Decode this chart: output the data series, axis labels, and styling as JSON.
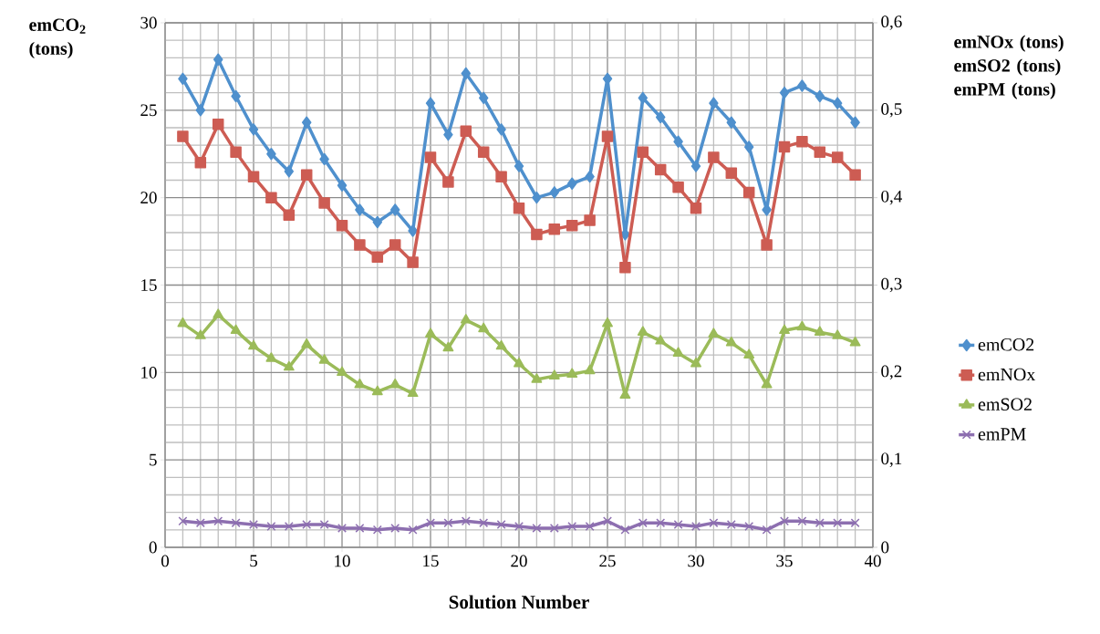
{
  "chart_data": {
    "type": "line",
    "xlabel": "Solution Number",
    "ylabel": "emCO$_{2}$ (tons)",
    "y2label": "emNOx (tons) emSO2 (tons) emPM (tons)",
    "x": [
      1,
      2,
      3,
      4,
      5,
      6,
      7,
      8,
      9,
      10,
      11,
      12,
      13,
      14,
      15,
      16,
      17,
      18,
      19,
      20,
      21,
      22,
      23,
      24,
      25,
      26,
      27,
      28,
      29,
      30,
      31,
      32,
      33,
      34,
      35,
      36,
      37,
      38,
      39
    ],
    "xlim": [
      0,
      40
    ],
    "xticks": [
      0,
      5,
      10,
      15,
      20,
      25,
      30,
      35,
      40
    ],
    "ylim": [
      0,
      30
    ],
    "yticks": [
      0,
      5,
      10,
      15,
      20,
      25,
      30
    ],
    "y2lim": [
      0,
      0.6
    ],
    "y2ticks": [
      0,
      {
        "value": 0.1,
        "label": "0,1"
      },
      {
        "value": 0.2,
        "label": "0,2"
      },
      {
        "value": 0.3,
        "label": "0,3"
      },
      {
        "value": 0.4,
        "label": "0,4"
      },
      {
        "value": 0.5,
        "label": "0,5"
      },
      {
        "value": 0.6,
        "label": "0,6"
      }
    ],
    "grid": true,
    "legend": "right",
    "series": [
      {
        "name": "emCO2",
        "color": "#4f90cd",
        "marker": "diamond",
        "values": [
          26.8,
          25.0,
          27.9,
          25.8,
          23.9,
          22.5,
          21.5,
          24.3,
          22.2,
          20.7,
          19.3,
          18.6,
          19.3,
          18.1,
          25.4,
          23.6,
          27.1,
          25.7,
          23.9,
          21.8,
          20.0,
          20.3,
          20.8,
          21.2,
          26.8,
          17.9,
          25.7,
          24.6,
          23.2,
          21.8,
          25.4,
          24.3,
          22.9,
          19.3,
          26.0,
          26.4,
          25.8,
          25.4,
          24.3
        ]
      },
      {
        "name": "emNOx",
        "color": "#cd5c53",
        "marker": "square",
        "axis": "y2",
        "values": [
          0.47,
          0.44,
          0.484,
          0.452,
          0.424,
          0.4,
          0.38,
          0.426,
          0.394,
          0.368,
          0.346,
          0.332,
          0.346,
          0.326,
          0.446,
          0.418,
          0.476,
          0.452,
          0.424,
          0.388,
          0.358,
          0.364,
          0.368,
          0.374,
          0.47,
          0.32,
          0.452,
          0.432,
          0.412,
          0.388,
          0.446,
          0.428,
          0.406,
          0.346,
          0.458,
          0.464,
          0.452,
          0.446,
          0.426
        ]
      },
      {
        "name": "emSO2",
        "color": "#9bbb59",
        "marker": "triangle",
        "axis": "y2",
        "values": [
          0.256,
          0.242,
          0.266,
          0.248,
          0.23,
          0.216,
          0.206,
          0.232,
          0.214,
          0.2,
          0.186,
          0.178,
          0.186,
          0.176,
          0.244,
          0.228,
          0.26,
          0.25,
          0.23,
          0.21,
          0.192,
          0.196,
          0.198,
          0.202,
          0.256,
          0.174,
          0.246,
          0.236,
          0.222,
          0.21,
          0.244,
          0.234,
          0.22,
          0.186,
          0.248,
          0.252,
          0.246,
          0.242,
          0.234
        ]
      },
      {
        "name": "emPM",
        "color": "#8d6fb0",
        "marker": "cross",
        "axis": "y2",
        "values": [
          0.03,
          0.028,
          0.03,
          0.028,
          0.026,
          0.024,
          0.024,
          0.026,
          0.026,
          0.022,
          0.022,
          0.02,
          0.022,
          0.02,
          0.028,
          0.028,
          0.03,
          0.028,
          0.026,
          0.024,
          0.022,
          0.022,
          0.024,
          0.024,
          0.03,
          0.02,
          0.028,
          0.028,
          0.026,
          0.024,
          0.028,
          0.026,
          0.024,
          0.02,
          0.03,
          0.03,
          0.028,
          0.028,
          0.028
        ]
      }
    ]
  }
}
